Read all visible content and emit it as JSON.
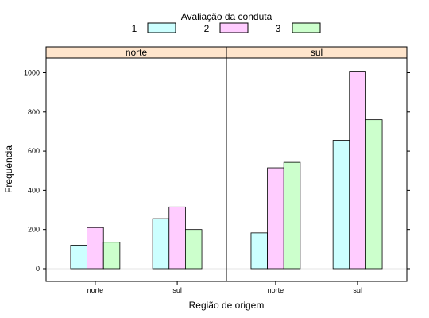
{
  "chart_data": {
    "type": "bar",
    "legend": {
      "title": "Avaliação da conduta",
      "entries": [
        {
          "label": "1",
          "color": "#ccffff"
        },
        {
          "label": "2",
          "color": "#ffccff"
        },
        {
          "label": "3",
          "color": "#ccffcc"
        }
      ],
      "placement": "top"
    },
    "xlabel": "Região de origem",
    "ylabel": "Frequência",
    "ylim": [
      -65,
      1075
    ],
    "yticks": [
      0,
      200,
      400,
      600,
      800,
      1000
    ],
    "ytick_labels": [
      "0",
      "200",
      "400",
      "600",
      "800",
      "1000"
    ],
    "grid": false,
    "strip_color": "#ffe5cc",
    "panels": [
      {
        "strip": "norte",
        "categories": [
          "norte",
          "sul"
        ],
        "series": [
          {
            "name": "1",
            "values": [
              120,
              255
            ]
          },
          {
            "name": "2",
            "values": [
              210,
              315
            ]
          },
          {
            "name": "3",
            "values": [
              135,
              200
            ]
          }
        ]
      },
      {
        "strip": "sul",
        "categories": [
          "norte",
          "sul"
        ],
        "series": [
          {
            "name": "1",
            "values": [
              183,
              655
            ]
          },
          {
            "name": "2",
            "values": [
              515,
              1008
            ]
          },
          {
            "name": "3",
            "values": [
              543,
              760
            ]
          }
        ]
      }
    ]
  }
}
